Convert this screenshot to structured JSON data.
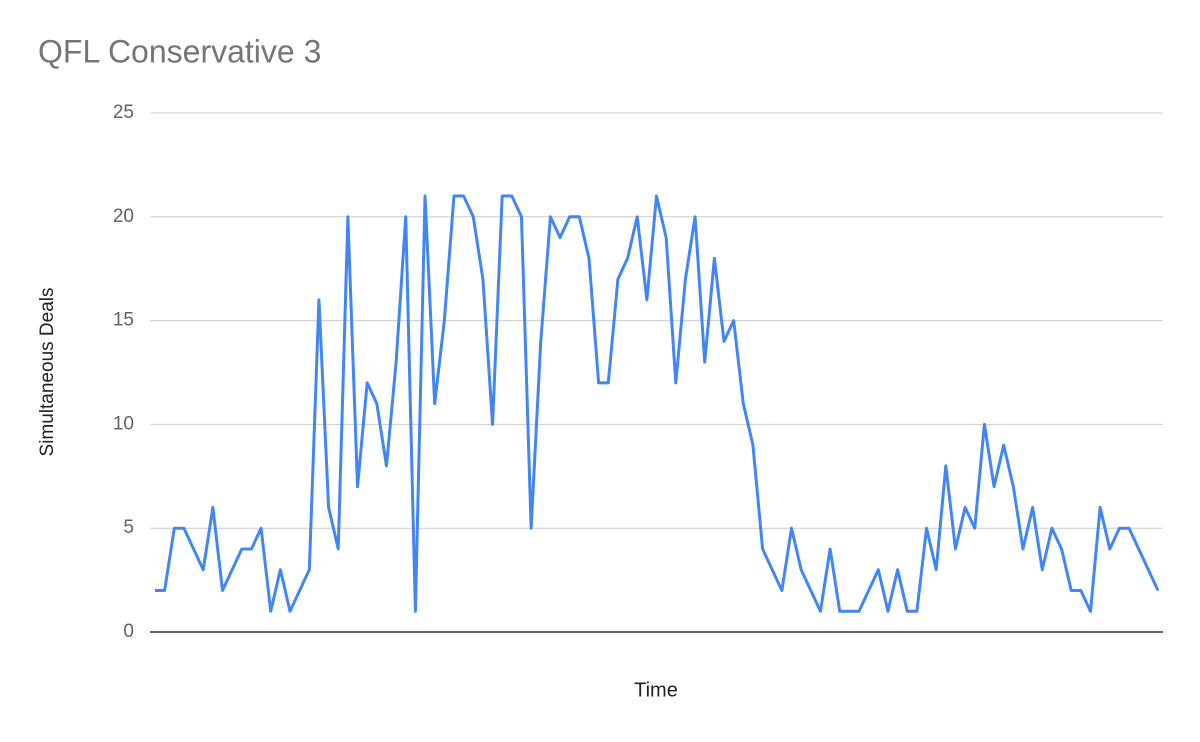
{
  "chart_data": {
    "type": "line",
    "title": "QFL Conservative 3",
    "x_label": "Time",
    "y_label": "Simultaneous Deals",
    "categories": [
      null,
      null,
      null,
      null,
      null,
      null,
      null,
      null,
      null,
      null,
      null,
      null,
      null,
      null,
      null,
      null,
      null,
      null,
      null,
      null,
      null,
      null,
      null,
      null,
      null,
      null,
      null,
      null,
      null,
      null,
      null,
      null,
      null,
      null,
      null,
      null,
      null,
      null,
      null,
      null,
      null,
      null,
      null,
      null,
      null,
      null,
      null,
      null,
      null,
      null,
      null,
      null,
      null,
      null,
      null,
      null,
      null,
      null,
      null,
      null,
      null,
      null,
      null,
      null,
      null,
      null,
      null,
      null,
      null,
      null,
      null,
      null,
      null,
      null,
      null,
      null,
      null,
      null,
      null,
      null,
      null,
      null,
      null,
      null,
      null,
      null,
      null,
      null,
      null,
      null,
      null,
      null,
      null,
      null,
      null,
      null,
      null,
      null,
      null,
      null,
      null,
      null,
      null,
      null,
      null
    ],
    "series": [
      {
        "name": "Simultaneous Deals",
        "color": "#4285f4",
        "values": [
          2,
          2,
          5,
          5,
          4,
          3,
          6,
          2,
          3,
          4,
          4,
          5,
          1,
          3,
          1,
          2,
          3,
          16,
          6,
          4,
          20,
          7,
          12,
          11,
          8,
          13,
          20,
          1,
          21,
          11,
          15,
          21,
          21,
          20,
          17,
          10,
          21,
          21,
          20,
          5,
          14,
          20,
          19,
          20,
          20,
          18,
          12,
          12,
          17,
          18,
          20,
          16,
          21,
          19,
          12,
          17,
          20,
          13,
          18,
          14,
          15,
          11,
          9,
          4,
          3,
          2,
          5,
          3,
          2,
          1,
          4,
          1,
          1,
          1,
          2,
          3,
          1,
          3,
          1,
          1,
          5,
          3,
          8,
          4,
          6,
          5,
          10,
          7,
          9,
          7,
          4,
          6,
          3,
          5,
          4,
          2,
          2,
          1,
          6,
          4,
          5,
          5,
          4,
          3,
          2
        ]
      }
    ],
    "ylim": [
      0,
      25
    ],
    "yticks": [
      0,
      5,
      10,
      15,
      20,
      25
    ],
    "grid": true
  }
}
